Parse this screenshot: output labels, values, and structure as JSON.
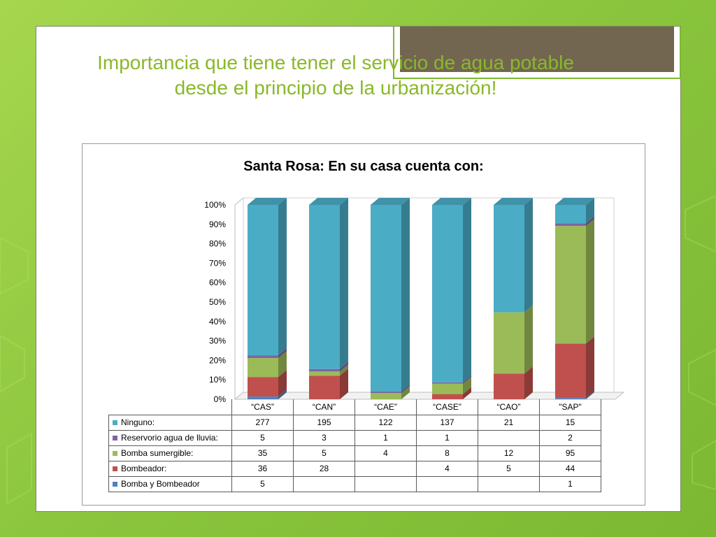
{
  "slide": {
    "title": "Importancia que tiene tener el servicio de agua potable desde el principio de la urbanización!"
  },
  "chart_data": {
    "type": "bar",
    "stacked": "percent",
    "title": "Santa Rosa: En su casa cuenta con:",
    "categories": [
      "“CAS”",
      "“CAN”",
      "“CAE”",
      "“CASE”",
      "“CAO”",
      "\"SAP\""
    ],
    "y_ticks": [
      "0%",
      "10%",
      "20%",
      "30%",
      "40%",
      "50%",
      "60%",
      "70%",
      "80%",
      "90%",
      "100%"
    ],
    "ylim": [
      0,
      100
    ],
    "legend_placement": "data-table",
    "series": [
      {
        "name": "Bomba y Bombeador",
        "color": "#4f81bd",
        "values": [
          5,
          null,
          null,
          null,
          null,
          1
        ]
      },
      {
        "name": "Bombeador:",
        "color": "#c0504d",
        "values": [
          36,
          28,
          null,
          4,
          5,
          44
        ]
      },
      {
        "name": "Bomba sumergible:",
        "color": "#9bbb59",
        "values": [
          35,
          5,
          4,
          8,
          12,
          95
        ]
      },
      {
        "name": "Reservorio agua de lluvia:",
        "color": "#8064a2",
        "values": [
          5,
          3,
          1,
          1,
          null,
          2
        ]
      },
      {
        "name": "Ninguno:",
        "color": "#4bacc6",
        "values": [
          277,
          195,
          122,
          137,
          21,
          15
        ]
      }
    ],
    "table_order": [
      4,
      3,
      2,
      1,
      0
    ]
  }
}
